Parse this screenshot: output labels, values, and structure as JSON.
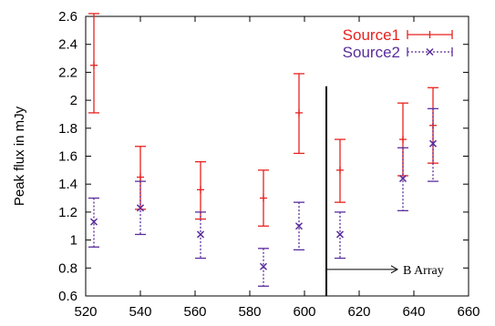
{
  "chart_data": {
    "type": "scatter",
    "title": "",
    "xlabel": "",
    "ylabel": "Peak flux in mJy",
    "xlim": [
      520,
      660
    ],
    "ylim": [
      0.6,
      2.6
    ],
    "x_ticks": [
      520,
      540,
      560,
      580,
      600,
      620,
      640,
      660
    ],
    "y_ticks": [
      0.6,
      0.8,
      1,
      1.2,
      1.4,
      1.6,
      1.8,
      2,
      2.2,
      2.4,
      2.6
    ],
    "grid": false,
    "legend_position": "top-right",
    "series": [
      {
        "name": "Source1",
        "color": "#e8221e",
        "marker": "plus",
        "line_style": "solid",
        "points": [
          {
            "x": 523,
            "y": 2.25,
            "err_low": 1.91,
            "err_high": 2.62
          },
          {
            "x": 540,
            "y": 1.45,
            "err_low": 1.22,
            "err_high": 1.67
          },
          {
            "x": 562,
            "y": 1.36,
            "err_low": 1.15,
            "err_high": 1.56
          },
          {
            "x": 585,
            "y": 1.3,
            "err_low": 1.1,
            "err_high": 1.5
          },
          {
            "x": 598,
            "y": 1.91,
            "err_low": 1.62,
            "err_high": 2.19
          },
          {
            "x": 613,
            "y": 1.5,
            "err_low": 1.27,
            "err_high": 1.72
          },
          {
            "x": 636,
            "y": 1.72,
            "err_low": 1.46,
            "err_high": 1.98
          },
          {
            "x": 647,
            "y": 1.82,
            "err_low": 1.55,
            "err_high": 2.09
          }
        ]
      },
      {
        "name": "Source2",
        "color": "#5a2d9c",
        "marker": "cross",
        "line_style": "dotted",
        "points": [
          {
            "x": 523,
            "y": 1.13,
            "err_low": 0.95,
            "err_high": 1.3
          },
          {
            "x": 540,
            "y": 1.23,
            "err_low": 1.04,
            "err_high": 1.42
          },
          {
            "x": 562,
            "y": 1.04,
            "err_low": 0.87,
            "err_high": 1.2
          },
          {
            "x": 585,
            "y": 0.81,
            "err_low": 0.67,
            "err_high": 0.94
          },
          {
            "x": 598,
            "y": 1.1,
            "err_low": 0.93,
            "err_high": 1.27
          },
          {
            "x": 613,
            "y": 1.04,
            "err_low": 0.87,
            "err_high": 1.2
          },
          {
            "x": 636,
            "y": 1.44,
            "err_low": 1.21,
            "err_high": 1.66
          },
          {
            "x": 647,
            "y": 1.69,
            "err_low": 1.42,
            "err_high": 1.94
          }
        ]
      }
    ],
    "annotations": [
      {
        "text": "B Array",
        "vline_x": 608,
        "arrow_from_x": 608,
        "arrow_to_x": 634,
        "arrow_y": 0.79
      }
    ]
  }
}
